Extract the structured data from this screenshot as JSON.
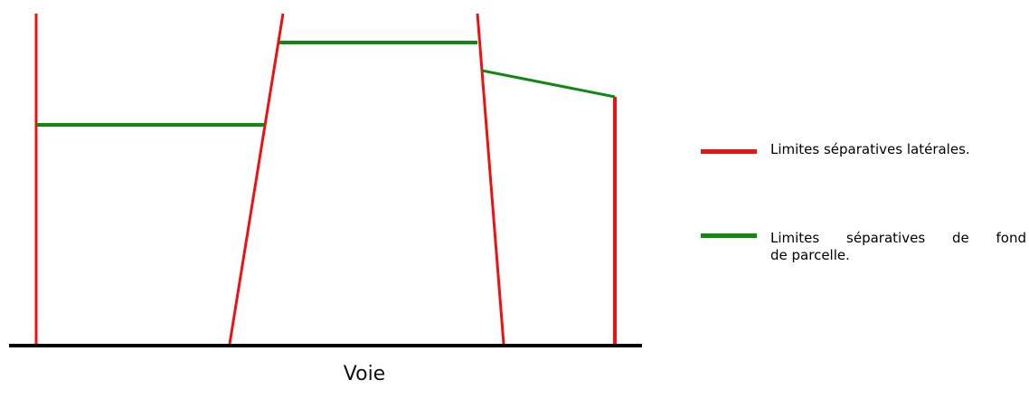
{
  "diagram": {
    "road_label": "Voie",
    "colors": {
      "lateral": "#ee1111",
      "back": "#118811",
      "road": "#000000"
    }
  },
  "legend": {
    "lateral_label": "Limites séparatives latérales.",
    "back_label_line1": "Limites séparatives de fond",
    "back_label_line2": "de parcelle."
  }
}
